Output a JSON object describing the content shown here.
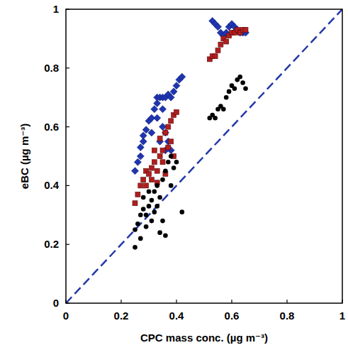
{
  "chart_data": {
    "type": "scatter",
    "x_label": "CPC mass conc. (µg m⁻³)",
    "y_label": "eBC (µg m⁻³)",
    "xlim": [
      0,
      1
    ],
    "ylim": [
      0,
      1
    ],
    "xticks": [
      0,
      0.2,
      0.4,
      0.6,
      0.8,
      1
    ],
    "yticks": [
      0,
      0.2,
      0.4,
      0.6,
      0.8,
      1
    ],
    "grid": false,
    "series": [
      {
        "color": "#1f35b0",
        "marker": "diamond",
        "x": [
          0.25,
          0.26,
          0.27,
          0.27,
          0.28,
          0.28,
          0.29,
          0.3,
          0.31,
          0.32,
          0.33,
          0.33,
          0.34,
          0.35,
          0.36,
          0.37,
          0.35,
          0.36,
          0.37,
          0.38,
          0.36,
          0.34,
          0.38,
          0.39,
          0.4,
          0.41,
          0.42,
          0.35,
          0.33,
          0.31,
          0.53,
          0.54,
          0.55,
          0.56,
          0.57,
          0.58,
          0.59,
          0.6,
          0.61,
          0.62,
          0.63,
          0.64,
          0.65
        ],
        "values": [
          0.45,
          0.48,
          0.5,
          0.53,
          0.55,
          0.57,
          0.59,
          0.62,
          0.63,
          0.66,
          0.68,
          0.7,
          0.7,
          0.7,
          0.7,
          0.71,
          0.6,
          0.58,
          0.55,
          0.52,
          0.52,
          0.55,
          0.7,
          0.72,
          0.74,
          0.76,
          0.77,
          0.66,
          0.63,
          0.58,
          0.96,
          0.95,
          0.94,
          0.92,
          0.91,
          0.92,
          0.94,
          0.95,
          0.94,
          0.93,
          0.92,
          0.92,
          0.92
        ]
      },
      {
        "color": "#b01e1e",
        "marker": "square",
        "x": [
          0.25,
          0.26,
          0.27,
          0.28,
          0.29,
          0.3,
          0.31,
          0.32,
          0.33,
          0.34,
          0.35,
          0.34,
          0.36,
          0.37,
          0.38,
          0.37,
          0.38,
          0.39,
          0.4,
          0.36,
          0.33,
          0.31,
          0.29,
          0.35,
          0.39,
          0.32,
          0.52,
          0.53,
          0.54,
          0.55,
          0.56,
          0.57,
          0.58,
          0.59,
          0.6,
          0.61,
          0.62,
          0.63,
          0.64,
          0.65
        ],
        "values": [
          0.34,
          0.37,
          0.4,
          0.42,
          0.45,
          0.44,
          0.46,
          0.48,
          0.45,
          0.5,
          0.52,
          0.56,
          0.58,
          0.53,
          0.55,
          0.6,
          0.62,
          0.64,
          0.65,
          0.44,
          0.41,
          0.42,
          0.4,
          0.48,
          0.5,
          0.52,
          0.83,
          0.84,
          0.84,
          0.86,
          0.88,
          0.9,
          0.89,
          0.91,
          0.92,
          0.92,
          0.93,
          0.92,
          0.93,
          0.93
        ]
      },
      {
        "color": "#000000",
        "marker": "circle",
        "x": [
          0.25,
          0.25,
          0.26,
          0.27,
          0.27,
          0.28,
          0.29,
          0.29,
          0.3,
          0.31,
          0.31,
          0.32,
          0.32,
          0.33,
          0.33,
          0.34,
          0.34,
          0.35,
          0.35,
          0.36,
          0.36,
          0.37,
          0.38,
          0.38,
          0.39,
          0.4,
          0.42,
          0.3,
          0.28,
          0.52,
          0.53,
          0.54,
          0.55,
          0.56,
          0.57,
          0.58,
          0.59,
          0.6,
          0.61,
          0.62,
          0.63,
          0.64,
          0.65
        ],
        "values": [
          0.19,
          0.25,
          0.27,
          0.22,
          0.3,
          0.32,
          0.3,
          0.26,
          0.33,
          0.28,
          0.35,
          0.31,
          0.38,
          0.33,
          0.4,
          0.24,
          0.36,
          0.28,
          0.42,
          0.23,
          0.45,
          0.48,
          0.5,
          0.4,
          0.46,
          0.48,
          0.31,
          0.38,
          0.36,
          0.63,
          0.64,
          0.63,
          0.66,
          0.67,
          0.66,
          0.7,
          0.72,
          0.74,
          0.73,
          0.76,
          0.77,
          0.75,
          0.73
        ]
      },
      {
        "type": "line",
        "color": "#2438a8",
        "line_style": "dashed",
        "x": [
          0,
          1
        ],
        "values": [
          0,
          1
        ]
      }
    ]
  }
}
